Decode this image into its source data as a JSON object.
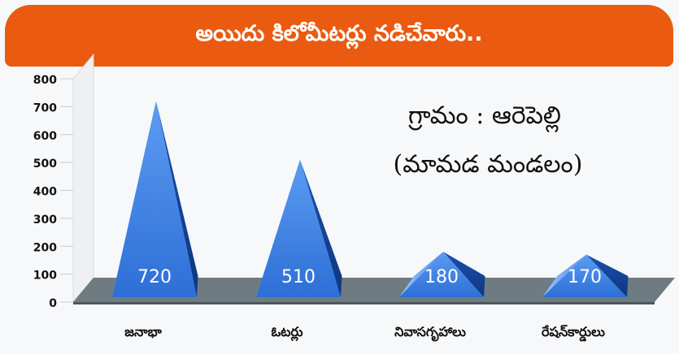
{
  "banner": {
    "title": "అయిదు కిలోమీటర్లు నడిచేవారు.."
  },
  "colors": {
    "banner": "#ea5a10",
    "pyramid": "#2f6fd1",
    "floor": "#6e7b80",
    "label": "#ffffff"
  },
  "chart_data": {
    "type": "bar",
    "style": "3d-pyramid",
    "categories": [
      "జనాభా",
      "ఓటర్లు",
      "నివాసగృహాలు",
      "రేషన్‌కార్డులు"
    ],
    "values": [
      720,
      510,
      180,
      170
    ],
    "data_labels": [
      "720",
      "510",
      "180",
      "170"
    ],
    "yticks": [
      "0",
      "100",
      "200",
      "300",
      "400",
      "500",
      "600",
      "700",
      "800"
    ],
    "ylim": [
      0,
      800
    ],
    "annotation": [
      "గ్రామం : ఆరెపెల్లి",
      "(మామడ మండలం)"
    ],
    "grid": false,
    "legend": "none"
  }
}
